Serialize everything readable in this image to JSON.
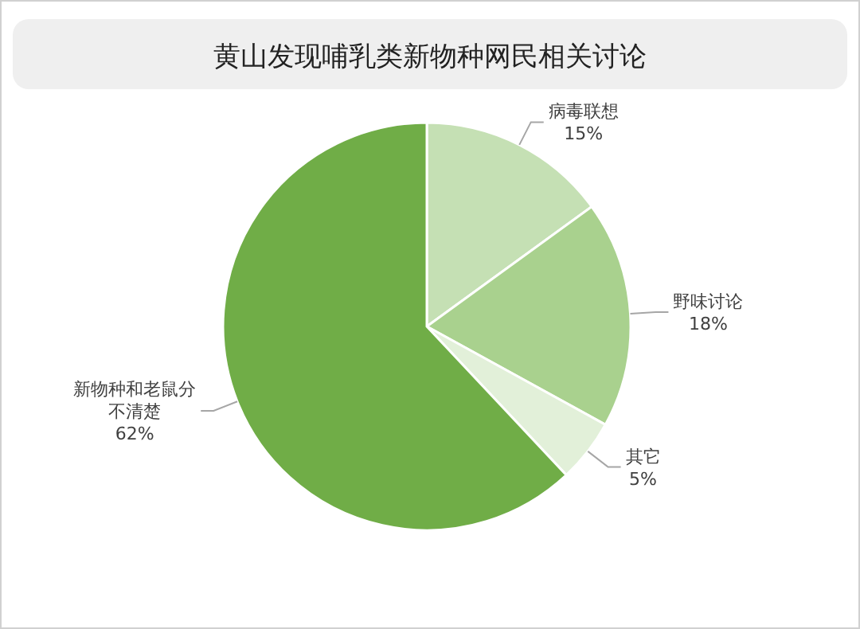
{
  "chart_data": {
    "type": "pie",
    "title": "黄山发现哺乳类新物种网民相关讨论",
    "categories": [
      "病毒联想",
      "野味讨论",
      "其它",
      "新物种和老鼠分不清楚"
    ],
    "values": [
      15,
      18,
      5,
      62
    ],
    "value_labels": [
      "15%",
      "18%",
      "5%",
      "62%"
    ],
    "colors": [
      "#c5e0b4",
      "#a9d18e",
      "#e2f0d9",
      "#70ad47"
    ]
  }
}
